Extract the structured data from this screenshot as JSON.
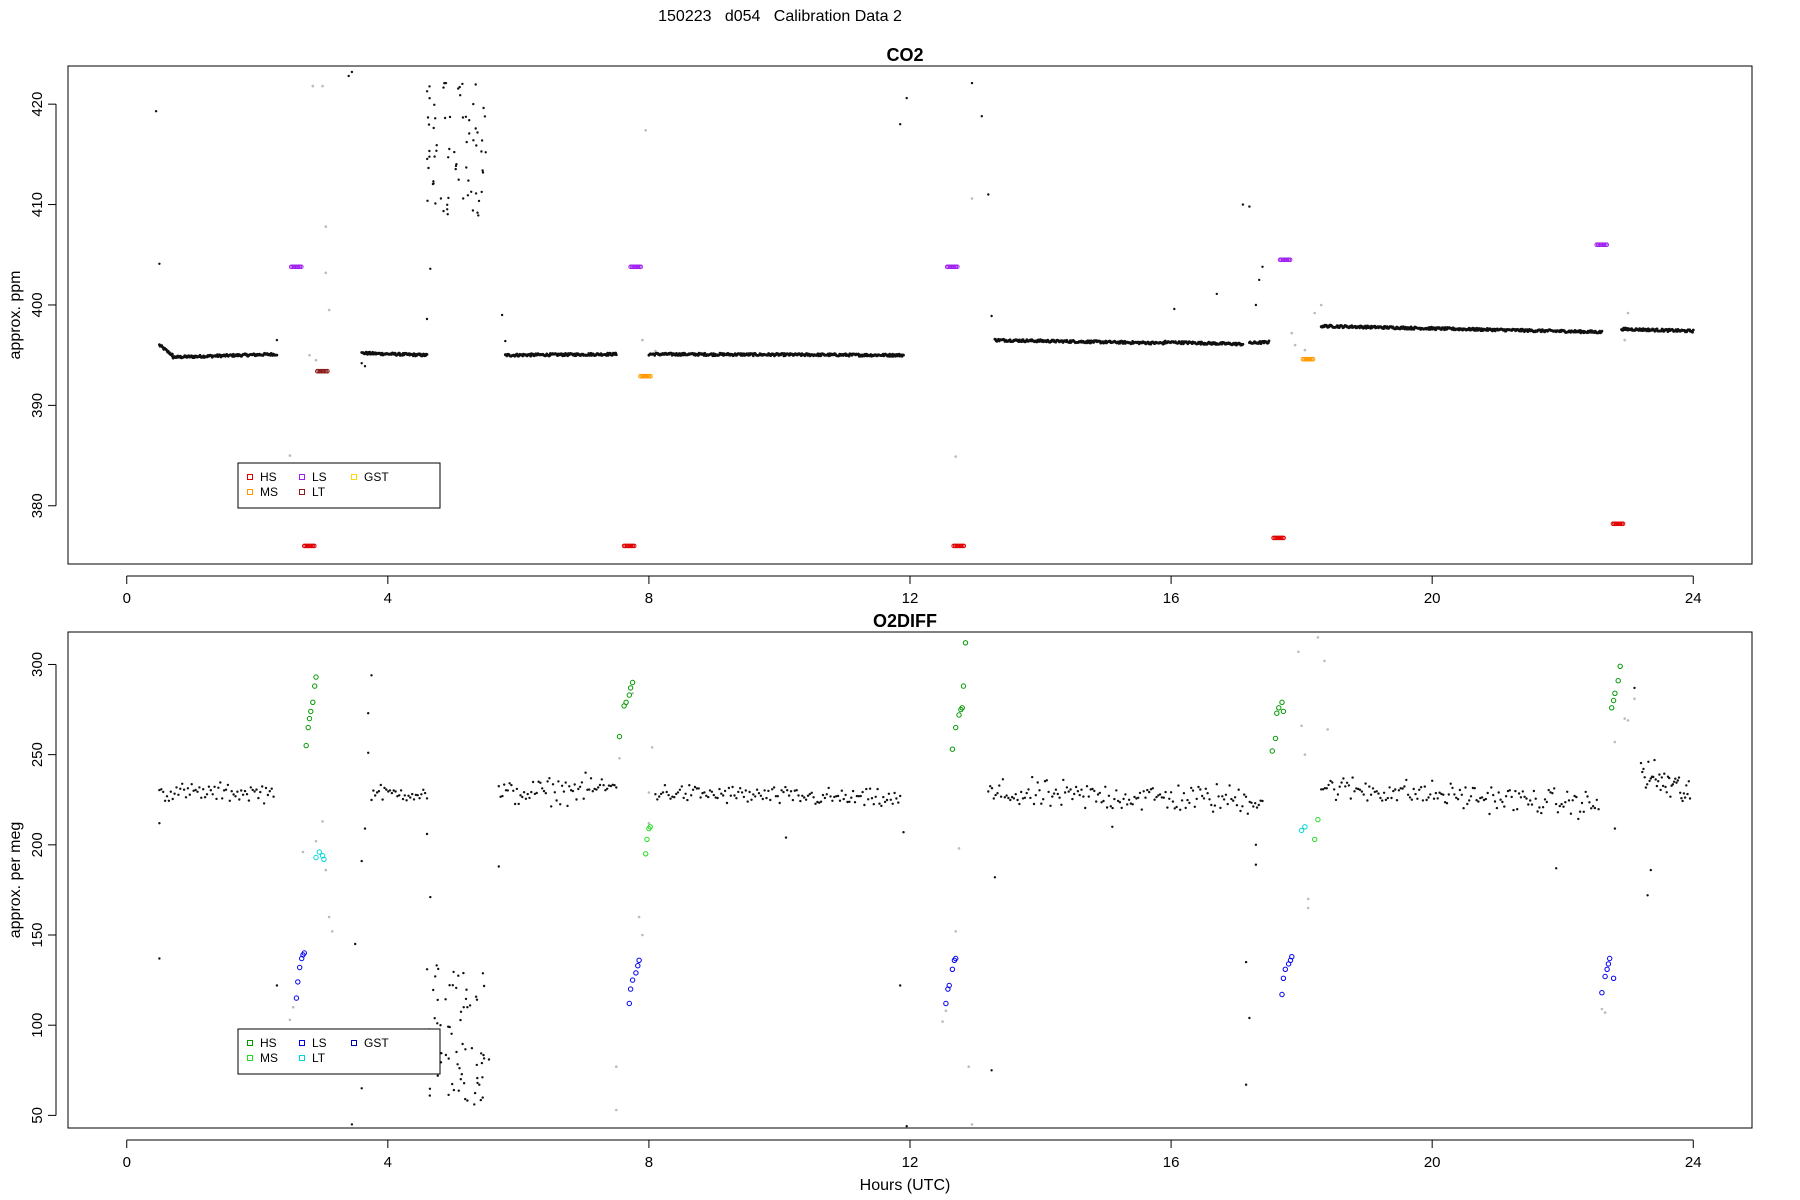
{
  "main_title": "150223   d054   Calibration Data 2",
  "colors": {
    "HS": "#009a00",
    "MS": "#22dd22",
    "LS": "#0000ee",
    "LT": "#00d8d8",
    "GST": "#0000aa",
    "co2_HS": "#e00000",
    "co2_MS": "#ff9900",
    "co2_LS": "#a020f0",
    "co2_LT": "#8b1a1a",
    "co2_GST": "#ffd700",
    "sample": "#111111",
    "flushed": "#bbbbbb"
  },
  "chart_data": [
    {
      "type": "scatter",
      "title": "CO2",
      "xlabel": "",
      "ylabel": "approx. ppm",
      "xlim": [
        -0.9,
        24.9
      ],
      "ylim": [
        374.2,
        423.8
      ],
      "x_ticks": [
        "0",
        "4",
        "8",
        "12",
        "16",
        "20",
        "24"
      ],
      "y_ticks": [
        "380",
        "390",
        "400",
        "410",
        "420"
      ],
      "legend": {
        "position": "bottom-left",
        "entries": [
          "HS",
          "MS",
          "LS",
          "LT",
          "GST"
        ]
      },
      "baseline_segments": [
        {
          "x0": 0.5,
          "x1": 0.7,
          "y0": 396.0,
          "y1": 395.0
        },
        {
          "x0": 0.7,
          "x1": 2.3,
          "y0": 394.8,
          "y1": 395.1
        },
        {
          "x0": 3.6,
          "x1": 4.6,
          "y0": 395.2,
          "y1": 395.0
        },
        {
          "x0": 5.8,
          "x1": 7.5,
          "y0": 395.0,
          "y1": 395.1
        },
        {
          "x0": 8.0,
          "x1": 11.9,
          "y0": 395.1,
          "y1": 395.0
        },
        {
          "x0": 13.3,
          "x1": 15.9,
          "y0": 396.5,
          "y1": 396.2
        },
        {
          "x0": 15.9,
          "x1": 17.1,
          "y0": 396.3,
          "y1": 396.1
        },
        {
          "x0": 17.2,
          "x1": 17.5,
          "y0": 396.2,
          "y1": 396.3
        },
        {
          "x0": 18.3,
          "x1": 22.6,
          "y0": 397.9,
          "y1": 397.3
        },
        {
          "x0": 22.9,
          "x1": 24.0,
          "y0": 397.6,
          "y1": 397.4
        }
      ],
      "scatter_cluster": {
        "x0": 4.6,
        "x1": 5.5,
        "ymin": 408.5,
        "ymax": 422.5,
        "n": 70
      },
      "outliers": [
        [
          0.45,
          419.3
        ],
        [
          0.5,
          404.1
        ],
        [
          2.3,
          396.5
        ],
        [
          3.4,
          422.8
        ],
        [
          3.45,
          423.2
        ],
        [
          3.6,
          394.2
        ],
        [
          3.65,
          393.9
        ],
        [
          4.65,
          403.6
        ],
        [
          4.6,
          398.6
        ],
        [
          5.5,
          415.2
        ],
        [
          5.75,
          399.0
        ],
        [
          5.8,
          396.4
        ],
        [
          11.85,
          418.0
        ],
        [
          11.95,
          420.6
        ],
        [
          12.95,
          422.1
        ],
        [
          13.1,
          418.8
        ],
        [
          13.2,
          411.0
        ],
        [
          13.25,
          398.9
        ],
        [
          17.1,
          410.0
        ],
        [
          17.2,
          409.8
        ],
        [
          17.3,
          400.0
        ],
        [
          17.35,
          402.5
        ],
        [
          17.4,
          403.8
        ],
        [
          16.05,
          399.6
        ],
        [
          16.7,
          401.1
        ]
      ],
      "flushed_points": [
        [
          2.8,
          395.0
        ],
        [
          2.85,
          421.8
        ],
        [
          3.0,
          421.8
        ],
        [
          3.05,
          407.8
        ],
        [
          3.05,
          403.2
        ],
        [
          3.1,
          399.5
        ],
        [
          2.9,
          394.5
        ],
        [
          2.5,
          385.0
        ],
        [
          7.95,
          417.4
        ],
        [
          7.9,
          396.5
        ],
        [
          12.7,
          384.9
        ],
        [
          12.95,
          410.6
        ],
        [
          17.85,
          397.2
        ],
        [
          17.9,
          396.0
        ],
        [
          18.05,
          395.5
        ],
        [
          18.2,
          399.2
        ],
        [
          18.3,
          400.0
        ],
        [
          23.0,
          399.2
        ],
        [
          22.95,
          396.5
        ],
        [
          8.1,
          395.4
        ]
      ],
      "cal_series": [
        {
          "name": "HS",
          "color": "#e00000",
          "points": [
            [
              2.8,
              376.0
            ],
            [
              7.7,
              376.0
            ],
            [
              12.75,
              376.0
            ],
            [
              17.65,
              376.8
            ],
            [
              22.85,
              378.2
            ]
          ]
        },
        {
          "name": "MS",
          "color": "#ff9900",
          "points": [
            [
              7.95,
              392.9
            ],
            [
              18.1,
              394.6
            ]
          ]
        },
        {
          "name": "LS",
          "color": "#a020f0",
          "points": [
            [
              2.6,
              403.8
            ],
            [
              7.8,
              403.8
            ],
            [
              12.65,
              403.8
            ],
            [
              17.75,
              404.5
            ],
            [
              22.6,
              406.0
            ]
          ]
        },
        {
          "name": "LT",
          "color": "#8b1a1a",
          "points": [
            [
              3.0,
              393.4
            ]
          ]
        }
      ]
    },
    {
      "type": "scatter",
      "title": "O2DIFF",
      "xlabel": "Hours (UTC)",
      "ylabel": "approx. per meg",
      "xlim": [
        -0.9,
        24.9
      ],
      "ylim": [
        43,
        318
      ],
      "x_ticks": [
        "0",
        "4",
        "8",
        "12",
        "16",
        "20",
        "24"
      ],
      "y_ticks": [
        "50",
        "100",
        "150",
        "200",
        "250",
        "300"
      ],
      "legend": {
        "position": "bottom-left",
        "entries": [
          "HS",
          "MS",
          "LS",
          "LT",
          "GST"
        ]
      },
      "baseline_segments": [
        {
          "x0": 0.5,
          "x1": 2.25,
          "y0": 229,
          "y1": 229,
          "n": 60,
          "noise": 5
        },
        {
          "x0": 3.75,
          "x1": 4.6,
          "y0": 229,
          "y1": 228,
          "n": 30,
          "noise": 4
        },
        {
          "x0": 5.7,
          "x1": 7.5,
          "y0": 228,
          "y1": 232,
          "n": 65,
          "noise": 7
        },
        {
          "x0": 8.1,
          "x1": 11.85,
          "y0": 229,
          "y1": 225,
          "n": 130,
          "noise": 5
        },
        {
          "x0": 13.2,
          "x1": 17.4,
          "y0": 228,
          "y1": 225,
          "n": 150,
          "noise": 8
        },
        {
          "x0": 18.3,
          "x1": 22.55,
          "y0": 232,
          "y1": 222,
          "n": 150,
          "noise": 7
        },
        {
          "x0": 23.2,
          "x1": 23.95,
          "y0": 240,
          "y1": 228,
          "n": 40,
          "noise": 10
        }
      ],
      "scatter_cluster": {
        "x0": 4.6,
        "x1": 5.5,
        "ymin": 55,
        "ymax": 135,
        "n": 70
      },
      "outliers": [
        [
          0.5,
          137
        ],
        [
          0.5,
          212
        ],
        [
          2.3,
          122
        ],
        [
          3.5,
          145
        ],
        [
          3.6,
          65
        ],
        [
          3.45,
          45
        ],
        [
          3.65,
          209
        ],
        [
          3.6,
          191
        ],
        [
          3.7,
          251
        ],
        [
          3.75,
          294
        ],
        [
          3.7,
          273
        ],
        [
          4.6,
          206
        ],
        [
          4.65,
          171
        ],
        [
          5.55,
          81
        ],
        [
          5.7,
          188
        ],
        [
          10.1,
          204
        ],
        [
          11.85,
          122
        ],
        [
          11.9,
          207
        ],
        [
          11.95,
          44
        ],
        [
          13.25,
          75
        ],
        [
          13.3,
          182
        ],
        [
          17.15,
          67
        ],
        [
          17.2,
          104
        ],
        [
          17.15,
          135
        ],
        [
          17.3,
          189
        ],
        [
          17.3,
          200
        ],
        [
          23.1,
          287
        ],
        [
          23.3,
          172
        ],
        [
          23.35,
          186
        ],
        [
          22.8,
          209
        ],
        [
          15.1,
          210
        ],
        [
          21.9,
          187
        ]
      ],
      "flushed_points": [
        [
          2.5,
          103
        ],
        [
          2.55,
          110
        ],
        [
          2.7,
          196
        ],
        [
          2.9,
          202
        ],
        [
          3.0,
          213
        ],
        [
          3.1,
          160
        ],
        [
          3.15,
          152
        ],
        [
          3.05,
          186
        ],
        [
          7.5,
          77
        ],
        [
          7.5,
          53
        ],
        [
          7.55,
          248
        ],
        [
          7.75,
          284
        ],
        [
          7.85,
          160
        ],
        [
          7.9,
          150
        ],
        [
          8.0,
          212
        ],
        [
          8.05,
          254
        ],
        [
          8.0,
          229
        ],
        [
          12.5,
          102
        ],
        [
          12.55,
          108
        ],
        [
          12.75,
          198
        ],
        [
          12.7,
          152
        ],
        [
          12.9,
          77
        ],
        [
          12.95,
          45
        ],
        [
          17.95,
          307
        ],
        [
          18.0,
          266
        ],
        [
          18.05,
          250
        ],
        [
          18.1,
          170
        ],
        [
          18.1,
          165
        ],
        [
          18.25,
          315
        ],
        [
          18.35,
          302
        ],
        [
          18.4,
          264
        ],
        [
          22.6,
          109
        ],
        [
          22.65,
          107
        ],
        [
          22.8,
          257
        ],
        [
          22.95,
          270
        ],
        [
          23.1,
          281
        ],
        [
          23.0,
          269
        ]
      ],
      "cal_series": [
        {
          "name": "HS",
          "color": "#009a00",
          "points": [
            [
              2.75,
              255
            ],
            [
              2.78,
              265
            ],
            [
              2.8,
              270
            ],
            [
              2.82,
              274
            ],
            [
              2.85,
              279
            ],
            [
              2.88,
              288
            ],
            [
              2.9,
              293
            ],
            [
              7.55,
              260
            ],
            [
              7.62,
              277
            ],
            [
              7.65,
              279
            ],
            [
              7.7,
              283
            ],
            [
              7.72,
              287
            ],
            [
              7.75,
              290
            ],
            [
              12.65,
              253
            ],
            [
              12.7,
              265
            ],
            [
              12.75,
              272
            ],
            [
              12.78,
              275
            ],
            [
              12.8,
              276
            ],
            [
              12.82,
              288
            ],
            [
              12.85,
              312
            ],
            [
              17.55,
              252
            ],
            [
              17.6,
              259
            ],
            [
              17.62,
              273
            ],
            [
              17.65,
              276
            ],
            [
              17.7,
              279
            ],
            [
              17.72,
              274
            ],
            [
              22.75,
              276
            ],
            [
              22.78,
              280
            ],
            [
              22.8,
              284
            ],
            [
              22.85,
              291
            ],
            [
              22.88,
              299
            ]
          ]
        },
        {
          "name": "MS",
          "color": "#22dd22",
          "points": [
            [
              7.95,
              195
            ],
            [
              7.97,
              203
            ],
            [
              8.0,
              209
            ],
            [
              8.02,
              210
            ],
            [
              18.2,
              203
            ],
            [
              18.25,
              214
            ]
          ]
        },
        {
          "name": "LS",
          "color": "#0000ee",
          "points": [
            [
              2.6,
              115
            ],
            [
              2.62,
              124
            ],
            [
              2.65,
              132
            ],
            [
              2.68,
              137
            ],
            [
              2.7,
              139
            ],
            [
              2.72,
              140
            ],
            [
              7.7,
              112
            ],
            [
              7.72,
              120
            ],
            [
              7.75,
              125
            ],
            [
              7.8,
              129
            ],
            [
              7.83,
              133
            ],
            [
              7.85,
              136
            ],
            [
              12.55,
              112
            ],
            [
              12.58,
              120
            ],
            [
              12.6,
              122
            ],
            [
              12.65,
              131
            ],
            [
              12.68,
              136
            ],
            [
              12.7,
              137
            ],
            [
              17.7,
              117
            ],
            [
              17.72,
              126
            ],
            [
              17.75,
              131
            ],
            [
              17.8,
              134
            ],
            [
              17.83,
              136
            ],
            [
              17.85,
              138
            ],
            [
              22.6,
              118
            ],
            [
              22.65,
              127
            ],
            [
              22.68,
              131
            ],
            [
              22.7,
              134
            ],
            [
              22.72,
              137
            ],
            [
              22.78,
              126
            ]
          ]
        },
        {
          "name": "LT",
          "color": "#00d8d8",
          "points": [
            [
              2.9,
              193
            ],
            [
              2.95,
              196
            ],
            [
              3.0,
              194
            ],
            [
              3.02,
              192
            ],
            [
              18.0,
              208
            ],
            [
              18.05,
              210
            ]
          ]
        }
      ]
    }
  ]
}
